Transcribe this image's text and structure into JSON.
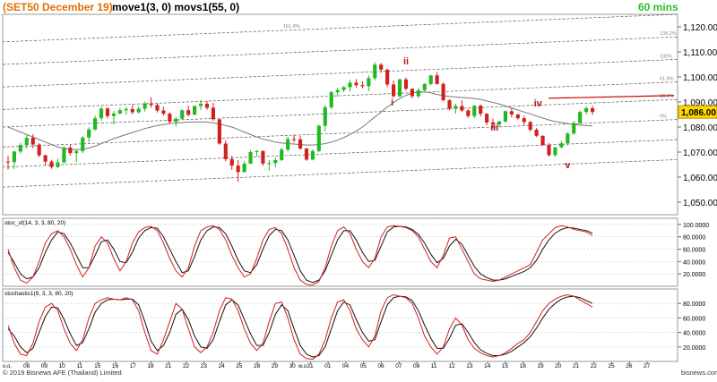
{
  "header": {
    "title": "(SET50 December 19)",
    "indicators": "move1(3, 0) movs1(55, 0)",
    "timeframe": "60 mins",
    "title_color": "#e07000",
    "timeframe_color": "#2bbf2b"
  },
  "footer": {
    "copyright": "© 2019 Bisnews AFE (Thailand) Limited",
    "brand": "bisnews.com"
  },
  "chart_data": [
    {
      "panel": "price",
      "type": "candlestick",
      "ylim": [
        1045,
        1125
      ],
      "y_ticks": [
        1050,
        1060,
        1070,
        1080,
        1090,
        1100,
        1110,
        1120
      ],
      "y_tick_labels": [
        "1,050.00",
        "1,060.00",
        "1,070.00",
        "1,080.00",
        "1,090.00",
        "1,100.00",
        "1,110.00",
        "1,120.00"
      ],
      "last_price_label": "1,086.00",
      "last_price": 1086,
      "candles_ohlc": [
        [
          1066.2,
          1068.6,
          1063.0,
          1066.0
        ],
        [
          1066.0,
          1070.6,
          1063.2,
          1070.2
        ],
        [
          1070.2,
          1073.7,
          1069.4,
          1072.8
        ],
        [
          1072.8,
          1076.8,
          1071.4,
          1075.7
        ],
        [
          1075.7,
          1077.2,
          1071.6,
          1073.0
        ],
        [
          1073.0,
          1073.6,
          1068.0,
          1068.7
        ],
        [
          1068.7,
          1069.0,
          1064.6,
          1066.2
        ],
        [
          1066.2,
          1066.9,
          1063.3,
          1064.0
        ],
        [
          1064.0,
          1067.4,
          1063.7,
          1065.9
        ],
        [
          1065.9,
          1072.3,
          1065.4,
          1071.8
        ],
        [
          1071.8,
          1072.9,
          1068.6,
          1069.6
        ],
        [
          1069.6,
          1071.2,
          1066.0,
          1070.4
        ],
        [
          1070.4,
          1076.4,
          1069.6,
          1075.8
        ],
        [
          1075.8,
          1079.9,
          1074.0,
          1079.0
        ],
        [
          1079.0,
          1084.5,
          1078.6,
          1083.5
        ],
        [
          1083.5,
          1088.2,
          1082.5,
          1087.4
        ],
        [
          1087.4,
          1087.9,
          1083.4,
          1084.4
        ],
        [
          1084.4,
          1086.4,
          1081.0,
          1085.4
        ],
        [
          1085.4,
          1087.7,
          1085.1,
          1086.7
        ],
        [
          1086.7,
          1088.0,
          1085.0,
          1087.2
        ],
        [
          1087.2,
          1088.9,
          1085.1,
          1085.9
        ],
        [
          1085.9,
          1088.2,
          1085.4,
          1087.3
        ],
        [
          1087.3,
          1090.1,
          1086.2,
          1089.3
        ],
        [
          1089.3,
          1091.9,
          1087.7,
          1088.8
        ],
        [
          1088.8,
          1089.4,
          1085.8,
          1086.6
        ],
        [
          1086.6,
          1088.1,
          1084.6,
          1085.3
        ],
        [
          1085.3,
          1085.9,
          1081.3,
          1082.1
        ],
        [
          1082.1,
          1084.0,
          1080.2,
          1083.3
        ],
        [
          1083.3,
          1087.0,
          1083.0,
          1086.7
        ],
        [
          1086.7,
          1088.5,
          1084.2,
          1084.9
        ],
        [
          1084.9,
          1088.6,
          1084.8,
          1088.4
        ],
        [
          1088.4,
          1090.7,
          1086.9,
          1089.3
        ],
        [
          1089.3,
          1090.4,
          1086.9,
          1087.7
        ],
        [
          1087.7,
          1089.7,
          1082.4,
          1083.1
        ],
        [
          1083.1,
          1083.2,
          1072.9,
          1073.4
        ],
        [
          1073.4,
          1074.7,
          1066.3,
          1067.2
        ],
        [
          1067.2,
          1068.5,
          1062.9,
          1064.6
        ],
        [
          1064.6,
          1066.9,
          1058.1,
          1062.0
        ],
        [
          1062.0,
          1066.4,
          1061.8,
          1065.4
        ],
        [
          1065.4,
          1070.7,
          1065.2,
          1070.0
        ],
        [
          1070.0,
          1070.8,
          1068.3,
          1070.4
        ],
        [
          1070.4,
          1070.7,
          1064.5,
          1065.4
        ],
        [
          1065.4,
          1066.8,
          1062.6,
          1065.6
        ],
        [
          1065.6,
          1067.7,
          1064.0,
          1066.8
        ],
        [
          1066.8,
          1071.8,
          1066.4,
          1071.0
        ],
        [
          1071.0,
          1076.1,
          1070.2,
          1075.2
        ],
        [
          1075.2,
          1077.0,
          1073.9,
          1075.1
        ],
        [
          1075.1,
          1076.5,
          1071.1,
          1071.4
        ],
        [
          1071.4,
          1071.6,
          1066.5,
          1067.0
        ],
        [
          1067.0,
          1071.1,
          1066.7,
          1070.4
        ],
        [
          1070.4,
          1081.0,
          1070.0,
          1080.5
        ],
        [
          1080.5,
          1088.8,
          1078.3,
          1087.9
        ],
        [
          1087.9,
          1094.5,
          1087.1,
          1093.9
        ],
        [
          1093.9,
          1095.6,
          1092.3,
          1094.8
        ],
        [
          1094.8,
          1096.4,
          1093.9,
          1095.9
        ],
        [
          1095.9,
          1098.8,
          1094.1,
          1097.7
        ],
        [
          1097.7,
          1099.1,
          1095.8,
          1096.7
        ],
        [
          1096.7,
          1098.2,
          1095.4,
          1096.3
        ],
        [
          1096.3,
          1100.6,
          1094.3,
          1099.5
        ],
        [
          1099.5,
          1105.8,
          1098.7,
          1104.9
        ],
        [
          1104.9,
          1105.6,
          1101.7,
          1102.9
        ],
        [
          1102.9,
          1103.3,
          1095.9,
          1097.0
        ],
        [
          1097.0,
          1098.6,
          1091.8,
          1092.3
        ],
        [
          1092.3,
          1099.3,
          1091.9,
          1099.0
        ],
        [
          1099.0,
          1099.8,
          1094.6,
          1095.3
        ],
        [
          1095.3,
          1095.3,
          1091.5,
          1092.3
        ],
        [
          1092.3,
          1095.6,
          1091.5,
          1094.7
        ],
        [
          1094.7,
          1097.6,
          1093.9,
          1097.2
        ],
        [
          1097.2,
          1100.8,
          1096.6,
          1100.6
        ],
        [
          1100.6,
          1102.0,
          1096.9,
          1097.2
        ],
        [
          1097.2,
          1097.8,
          1090.2,
          1090.7
        ],
        [
          1090.7,
          1091.1,
          1086.6,
          1087.4
        ],
        [
          1087.4,
          1089.3,
          1085.3,
          1088.4
        ],
        [
          1088.4,
          1090.7,
          1086.0,
          1086.6
        ],
        [
          1086.6,
          1087.2,
          1083.6,
          1084.4
        ],
        [
          1084.4,
          1088.8,
          1083.5,
          1088.5
        ],
        [
          1088.5,
          1089.0,
          1084.2,
          1085.3
        ],
        [
          1085.3,
          1085.5,
          1080.7,
          1081.8
        ],
        [
          1081.8,
          1083.4,
          1079.4,
          1081.0
        ],
        [
          1081.0,
          1082.5,
          1079.9,
          1082.2
        ],
        [
          1082.2,
          1086.7,
          1081.8,
          1086.3
        ],
        [
          1086.3,
          1087.7,
          1083.8,
          1085.0
        ],
        [
          1085.0,
          1085.2,
          1082.9,
          1083.5
        ],
        [
          1083.5,
          1084.5,
          1080.7,
          1082.0
        ],
        [
          1082.0,
          1082.4,
          1078.2,
          1078.9
        ],
        [
          1078.9,
          1079.6,
          1076.0,
          1076.5
        ],
        [
          1076.5,
          1076.7,
          1072.5,
          1072.8
        ],
        [
          1072.8,
          1073.6,
          1068.2,
          1068.8
        ],
        [
          1068.8,
          1072.0,
          1068.0,
          1071.9
        ],
        [
          1071.9,
          1074.5,
          1071.6,
          1073.5
        ],
        [
          1073.5,
          1078.0,
          1072.5,
          1077.4
        ],
        [
          1077.4,
          1082.4,
          1076.8,
          1081.6
        ],
        [
          1081.6,
          1086.6,
          1081.2,
          1086.0
        ],
        [
          1086.0,
          1088.4,
          1085.1,
          1087.5
        ],
        [
          1087.5,
          1088.5,
          1084.9,
          1086.0
        ]
      ],
      "ma_line": [
        1080.0,
        1079.0,
        1078.0,
        1077.0,
        1076.0,
        1075.0,
        1074.0,
        1073.0,
        1072.0,
        1071.5,
        1071.0,
        1071.0,
        1071.2,
        1071.6,
        1072.4,
        1073.4,
        1074.4,
        1075.4,
        1076.2,
        1077.0,
        1077.8,
        1078.6,
        1079.4,
        1080.0,
        1080.6,
        1081.0,
        1081.4,
        1081.6,
        1081.8,
        1082.0,
        1082.0,
        1082.0,
        1082.0,
        1081.6,
        1081.2,
        1080.6,
        1080.0,
        1079.0,
        1078.0,
        1077.0,
        1076.0,
        1075.2,
        1074.6,
        1074.0,
        1073.6,
        1073.4,
        1073.2,
        1073.0,
        1072.8,
        1072.8,
        1073.0,
        1073.4,
        1074.0,
        1074.8,
        1075.8,
        1077.0,
        1078.4,
        1080.0,
        1082.0,
        1084.0,
        1086.0,
        1088.0,
        1089.8,
        1091.4,
        1092.6,
        1093.6,
        1094.0,
        1094.0,
        1093.6,
        1093.0,
        1092.6,
        1092.2,
        1092.0,
        1091.8,
        1091.6,
        1091.4,
        1091.0,
        1090.4,
        1089.8,
        1089.2,
        1088.4,
        1087.6,
        1086.8,
        1086.0,
        1085.2,
        1084.4,
        1083.6,
        1082.8,
        1082.2,
        1081.8,
        1081.4,
        1081.0,
        1080.8,
        1080.6,
        1080.5
      ],
      "channel_labels": [
        "161.8%",
        "138.2%",
        "100%",
        "61.8%",
        "38.2%",
        "0%"
      ],
      "wave_labels": [
        "i",
        "ii",
        "iii",
        "iv",
        "v"
      ]
    },
    {
      "panel": "stoc_sf",
      "type": "line",
      "label": "stoc_sf(14, 3, 3, 80, 20)",
      "ylim": [
        0,
        110
      ],
      "y_ticks": [
        20,
        40,
        60,
        80,
        100
      ],
      "y_tick_labels": [
        "20.0000",
        "40.0000",
        "60.0000",
        "80.0000",
        "100.0000"
      ],
      "series_k": [
        60,
        30,
        10,
        5,
        15,
        40,
        70,
        85,
        90,
        80,
        60,
        35,
        15,
        30,
        65,
        80,
        70,
        45,
        25,
        40,
        70,
        88,
        95,
        97,
        90,
        70,
        45,
        25,
        15,
        30,
        65,
        90,
        96,
        98,
        92,
        75,
        50,
        30,
        15,
        20,
        45,
        75,
        92,
        95,
        85,
        60,
        30,
        10,
        3,
        2,
        8,
        30,
        65,
        90,
        96,
        85,
        60,
        40,
        30,
        45,
        80,
        96,
        98,
        97,
        95,
        90,
        80,
        60,
        40,
        30,
        50,
        78,
        80,
        60,
        40,
        20,
        12,
        10,
        8,
        10,
        15,
        20,
        25,
        30,
        35,
        55,
        75,
        85,
        95,
        98,
        96,
        92,
        90,
        88,
        82
      ],
      "series_d": [
        55,
        38,
        20,
        12,
        15,
        30,
        55,
        75,
        88,
        85,
        70,
        50,
        30,
        30,
        50,
        72,
        75,
        60,
        40,
        38,
        55,
        78,
        90,
        95,
        94,
        80,
        60,
        40,
        22,
        25,
        48,
        75,
        90,
        96,
        95,
        85,
        65,
        42,
        25,
        22,
        35,
        60,
        82,
        92,
        90,
        75,
        50,
        25,
        10,
        6,
        10,
        25,
        50,
        75,
        90,
        90,
        75,
        55,
        40,
        42,
        65,
        88,
        96,
        97,
        96,
        92,
        84,
        70,
        52,
        38,
        45,
        65,
        76,
        68,
        50,
        32,
        20,
        14,
        10,
        10,
        12,
        16,
        20,
        24,
        30,
        42,
        60,
        75,
        86,
        92,
        95,
        94,
        92,
        90,
        86
      ]
    },
    {
      "panel": "stochastic",
      "type": "line",
      "label": "stochastic1(9, 3, 3, 80, 20)",
      "ylim": [
        0,
        100
      ],
      "y_ticks": [
        20,
        40,
        60,
        80
      ],
      "y_tick_labels": [
        "20.0000",
        "40.0000",
        "60.0000",
        "80.0000"
      ],
      "series_k": [
        50,
        25,
        10,
        8,
        25,
        55,
        75,
        80,
        70,
        45,
        25,
        15,
        30,
        60,
        80,
        85,
        88,
        86,
        85,
        88,
        85,
        70,
        40,
        15,
        10,
        30,
        55,
        80,
        72,
        45,
        20,
        12,
        20,
        40,
        70,
        88,
        86,
        70,
        45,
        25,
        15,
        25,
        55,
        80,
        82,
        60,
        30,
        10,
        4,
        3,
        10,
        30,
        60,
        82,
        85,
        70,
        45,
        30,
        20,
        35,
        70,
        88,
        92,
        90,
        88,
        80,
        60,
        35,
        20,
        10,
        20,
        45,
        60,
        50,
        30,
        18,
        12,
        8,
        6,
        8,
        12,
        18,
        25,
        30,
        40,
        55,
        70,
        80,
        86,
        90,
        92,
        90,
        85,
        80,
        75
      ],
      "series_d": [
        45,
        35,
        20,
        12,
        18,
        40,
        62,
        75,
        74,
        58,
        38,
        22,
        26,
        45,
        68,
        80,
        85,
        86,
        85,
        86,
        86,
        78,
        55,
        28,
        15,
        22,
        40,
        65,
        72,
        58,
        35,
        20,
        18,
        30,
        55,
        78,
        85,
        78,
        58,
        38,
        22,
        22,
        40,
        65,
        78,
        70,
        45,
        22,
        10,
        6,
        8,
        20,
        45,
        70,
        82,
        78,
        58,
        40,
        28,
        30,
        55,
        78,
        88,
        90,
        89,
        84,
        70,
        50,
        32,
        18,
        18,
        32,
        50,
        52,
        40,
        26,
        16,
        11,
        8,
        8,
        10,
        14,
        20,
        26,
        34,
        46,
        60,
        72,
        80,
        86,
        89,
        90,
        88,
        84,
        80
      ]
    }
  ],
  "x_axis": {
    "tick_labels": [
      "08",
      "09",
      "10",
      "11",
      "15",
      "16",
      "17",
      "18",
      "21",
      "22",
      "23",
      "24",
      "25",
      "28",
      "29",
      "30",
      "31",
      "01",
      "04",
      "05",
      "06",
      "07",
      "08",
      "11",
      "12",
      "13",
      "14",
      "15",
      "18",
      "19",
      "20",
      "21",
      "22",
      "25",
      "26",
      "27"
    ],
    "month_marks": [
      "o.o.",
      "w.o."
    ]
  }
}
